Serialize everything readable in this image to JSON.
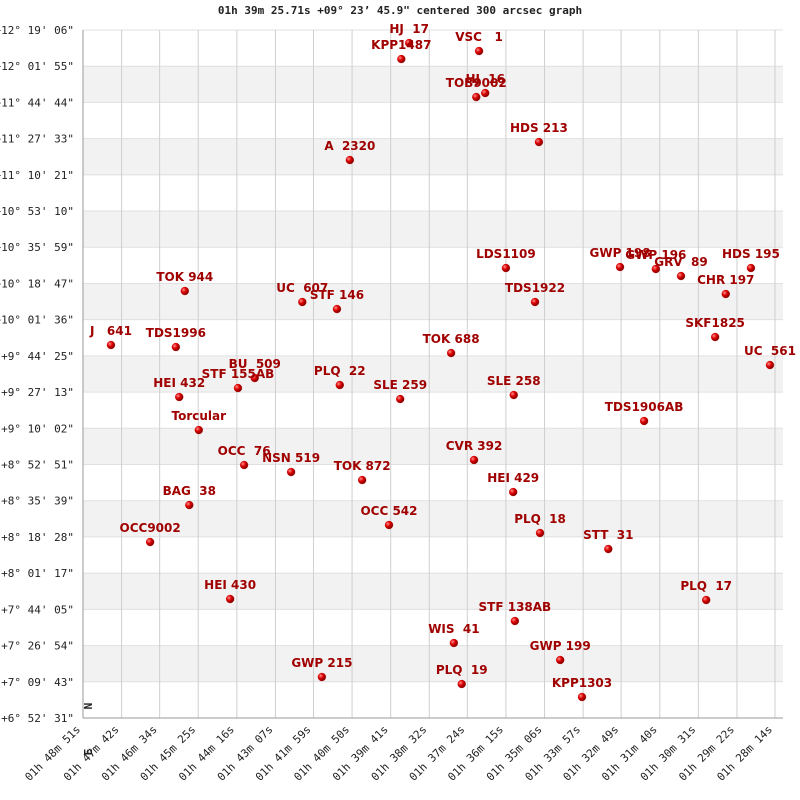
{
  "chart_data": {
    "type": "scatter",
    "title": "01h 39m 25.71s +09° 23’ 45.9\" centered 300 arcsec graph",
    "labels": [
      "HJ  17",
      "KPP1487",
      "VSC   1",
      "HJ  16",
      "TOB9002",
      "HDS 213",
      "A  2320",
      "LDS1109",
      "GWP 198",
      "GWP 196",
      "GRV  89",
      "HDS 195",
      "CHR 197",
      "TDS1922",
      "TOK 944",
      "UC  607",
      "STF 146",
      "SKF1825",
      "UC  561",
      "J   641",
      "TDS1996",
      "TOK 688",
      "BU  509",
      "STF 155AB",
      "PLQ  22",
      "SLE 259",
      "SLE 258",
      "HEI 432",
      "TDS1906AB",
      "Torcular",
      "CVR 392",
      "OCC  76",
      "NSN 519",
      "TOK 872",
      "HEI 429",
      "BAG  38",
      "OCC 542",
      "PLQ  18",
      "OCC9002",
      "STT  31",
      "HEI 430",
      "PLQ  17",
      "STF 138AB",
      "WIS  41",
      "GWP 199",
      "GWP 215",
      "PLQ  19",
      "KPP1303"
    ],
    "x": [
      5948,
      5962,
      5823,
      5812,
      5828,
      5716,
      6054,
      5775,
      5571,
      5507,
      5462,
      5337,
      5382,
      5723,
      6349,
      6139,
      6077,
      5401,
      5303,
      6481,
      6365,
      5873,
      6224,
      6254,
      6072,
      5964,
      5761,
      6359,
      5528,
      6324,
      5832,
      6243,
      6159,
      6032,
      5762,
      6341,
      5984,
      5714,
      6411,
      5592,
      6268,
      5417,
      5759,
      5868,
      5678,
      6104,
      5854,
      5639
    ],
    "y": [
      43975,
      43519,
      43747,
      42551,
      42437,
      41155,
      40643,
      37567,
      37595,
      37539,
      37339,
      37567,
      36827,
      36599,
      36912,
      36599,
      36399,
      35602,
      34804,
      35374,
      35317,
      35146,
      34434,
      34149,
      34235,
      33836,
      33950,
      33893,
      33210,
      32953,
      32099,
      31956,
      31757,
      31529,
      31187,
      30817,
      30248,
      30020,
      29763,
      29564,
      28140,
      28112,
      27514,
      26887,
      26403,
      25919,
      25719,
      25349
    ],
    "color": "#cc0000",
    "label_color": "#a00000",
    "xlim": [
      6531,
      5294
    ],
    "ylim": [
      24751,
      44346
    ],
    "xticks": [
      {
        "value": 6531,
        "label": "01h 48m 51s"
      },
      {
        "value": 6462,
        "label": "01h 47m 42s"
      },
      {
        "value": 6394,
        "label": "01h 46m 34s"
      },
      {
        "value": 6325,
        "label": "01h 45m 25s"
      },
      {
        "value": 6256,
        "label": "01h 44m 16s"
      },
      {
        "value": 6187,
        "label": "01h 43m 07s"
      },
      {
        "value": 6119,
        "label": "01h 41m 59s"
      },
      {
        "value": 6050,
        "label": "01h 40m 50s"
      },
      {
        "value": 5981,
        "label": "01h 39m 41s"
      },
      {
        "value": 5912,
        "label": "01h 38m 32s"
      },
      {
        "value": 5844,
        "label": "01h 37m 24s"
      },
      {
        "value": 5775,
        "label": "01h 36m 15s"
      },
      {
        "value": 5706,
        "label": "01h 35m 06s"
      },
      {
        "value": 5637,
        "label": "01h 33m 57s"
      },
      {
        "value": 5569,
        "label": "01h 32m 49s"
      },
      {
        "value": 5500,
        "label": "01h 31m 40s"
      },
      {
        "value": 5431,
        "label": "01h 30m 31s"
      },
      {
        "value": 5362,
        "label": "01h 29m 22s"
      },
      {
        "value": 5294,
        "label": "01h 28m 14s"
      }
    ],
    "yticks": [
      {
        "value": 44346,
        "label": "+12° 19' 06\""
      },
      {
        "value": 43315,
        "label": "+12° 01' 55\""
      },
      {
        "value": 42284,
        "label": "+11° 44' 44\""
      },
      {
        "value": 41253,
        "label": "+11° 27' 33\""
      },
      {
        "value": 40221,
        "label": "+11° 10' 21\""
      },
      {
        "value": 39190,
        "label": "+10° 53' 10\""
      },
      {
        "value": 38159,
        "label": "+10° 35' 59\""
      },
      {
        "value": 37127,
        "label": "+10° 18' 47\""
      },
      {
        "value": 36096,
        "label": "+10° 01' 36\""
      },
      {
        "value": 35065,
        "label": "+9° 44' 25\""
      },
      {
        "value": 34033,
        "label": "+9° 27' 13\""
      },
      {
        "value": 33002,
        "label": "+9° 10' 02\""
      },
      {
        "value": 31971,
        "label": "+8° 52' 51\""
      },
      {
        "value": 30939,
        "label": "+8° 35' 39\""
      },
      {
        "value": 29908,
        "label": "+8° 18' 28\""
      },
      {
        "value": 28877,
        "label": "+8° 01' 17\""
      },
      {
        "value": 27845,
        "label": "+7° 44' 05\""
      },
      {
        "value": 26814,
        "label": "+7° 26' 54\""
      },
      {
        "value": 25783,
        "label": "+7° 09' 43\""
      },
      {
        "value": 24751,
        "label": "+6° 52' 31\""
      }
    ],
    "grid": true,
    "annotations": [
      "N",
      "E"
    ]
  }
}
